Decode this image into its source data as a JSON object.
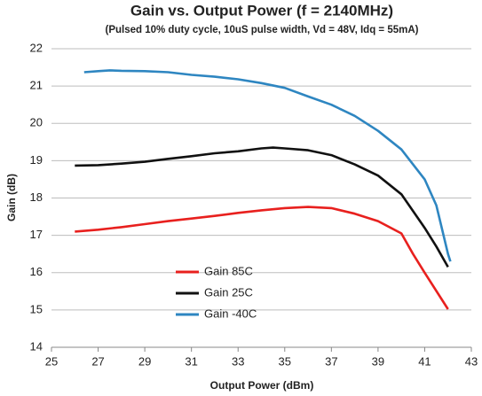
{
  "chart_data": {
    "type": "line",
    "title": "Gain vs. Output Power (f = 2140MHz)",
    "subtitle": "(Pulsed 10% duty cycle, 10uS pulse width, Vd = 48V, Idq = 55mA)",
    "x_label": "Output Power (dBm)",
    "y_label": "Gain (dB)",
    "xlim": [
      25,
      43
    ],
    "xticks": [
      25,
      27,
      29,
      31,
      33,
      35,
      37,
      39,
      41,
      43
    ],
    "ylim": [
      14,
      22
    ],
    "yticks": [
      14,
      15,
      16,
      17,
      18,
      19,
      20,
      21,
      22
    ],
    "grid": true,
    "legend": "lower left",
    "series": [
      {
        "name": "Gain 85C",
        "color": "#e8201e",
        "x": [
          26,
          27,
          28,
          29,
          30,
          31,
          32,
          33,
          34,
          35,
          36,
          37,
          38,
          39,
          40,
          40.5,
          41,
          42
        ],
        "values": [
          17.1,
          17.15,
          17.22,
          17.3,
          17.38,
          17.45,
          17.52,
          17.6,
          17.67,
          17.73,
          17.76,
          17.73,
          17.58,
          17.38,
          17.05,
          16.5,
          16,
          15.02
        ]
      },
      {
        "name": "Gain 25C",
        "color": "#111111",
        "x": [
          26,
          27,
          28,
          29,
          30,
          31,
          32,
          33,
          34,
          34.5,
          35,
          36,
          37,
          38,
          39,
          40,
          41,
          41.5,
          42
        ],
        "values": [
          18.87,
          18.88,
          18.92,
          18.97,
          19.05,
          19.12,
          19.2,
          19.25,
          19.33,
          19.35,
          19.33,
          19.28,
          19.15,
          18.9,
          18.6,
          18.1,
          17.2,
          16.7,
          16.15
        ]
      },
      {
        "name": "Gain -40C",
        "color": "#2e86c1",
        "x": [
          26.4,
          27,
          27.5,
          28,
          29,
          30,
          31,
          32,
          33,
          34,
          35,
          36,
          37,
          38,
          39,
          40,
          41,
          41.5,
          42,
          42.1
        ],
        "values": [
          21.37,
          21.4,
          21.42,
          21.41,
          21.4,
          21.37,
          21.3,
          21.25,
          21.18,
          21.08,
          20.95,
          20.72,
          20.5,
          20.2,
          19.8,
          19.3,
          18.5,
          17.8,
          16.5,
          16.3
        ]
      }
    ]
  }
}
